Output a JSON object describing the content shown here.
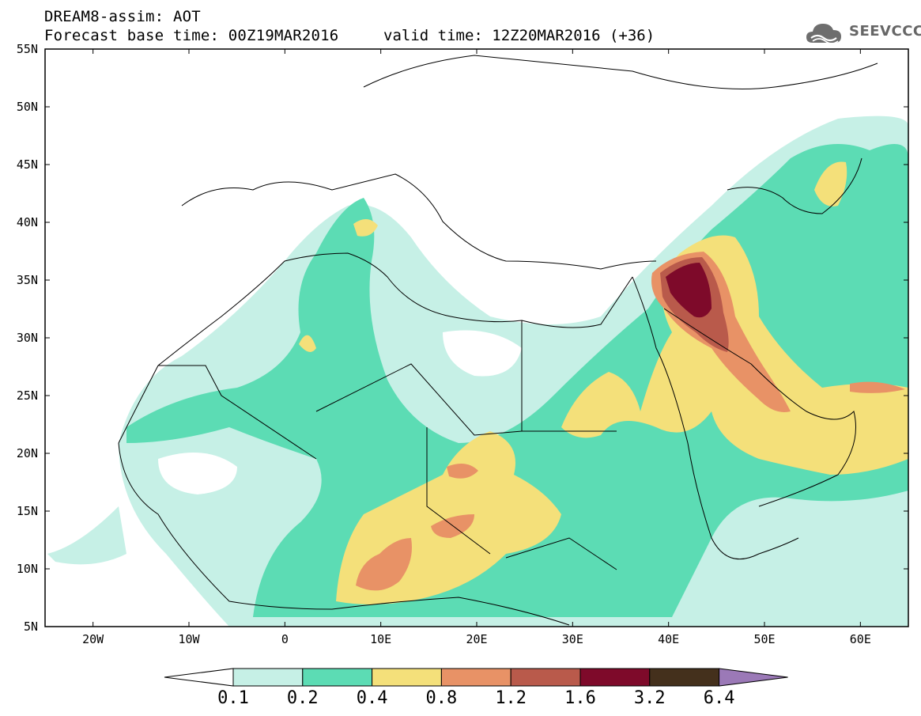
{
  "header": {
    "title": "DREAM8-assim: AOT",
    "base_time": "Forecast base time: 00Z19MAR2016",
    "valid_time": "valid time: 12Z20MAR2016 (+36)",
    "logo": "SEEVCCC"
  },
  "axes": {
    "lat_labels": [
      "55N",
      "50N",
      "45N",
      "40N",
      "35N",
      "30N",
      "25N",
      "20N",
      "15N",
      "10N",
      "5N"
    ],
    "lon_labels": [
      "20W",
      "10W",
      "0",
      "10E",
      "20E",
      "30E",
      "40E",
      "50E",
      "60E"
    ]
  },
  "colorbar": {
    "labels": [
      "0.1",
      "0.2",
      "0.4",
      "0.8",
      "1.2",
      "1.6",
      "3.2",
      "6.4"
    ],
    "colors": [
      "#ffffff",
      "#c6f0e6",
      "#5cdcb4",
      "#f4e07a",
      "#e89266",
      "#b95a4b",
      "#7e0a2a",
      "#44301c",
      "#9b79b7"
    ]
  }
}
